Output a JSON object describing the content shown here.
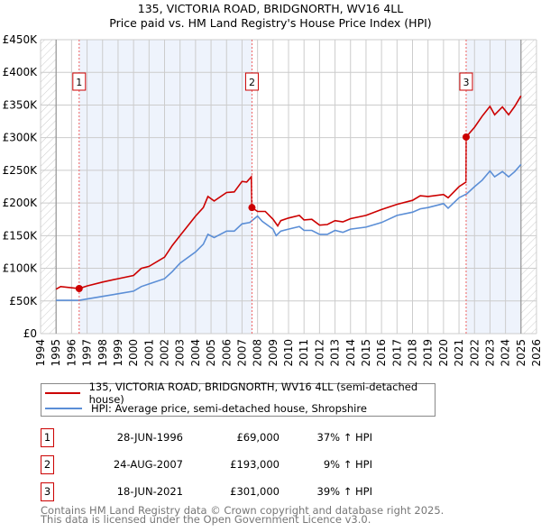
{
  "chart_data": {
    "type": "line",
    "title": "135, VICTORIA ROAD, BRIDGNORTH, WV16 4LL",
    "subtitle": "Price paid vs. HM Land Registry's House Price Index (HPI)",
    "xlim": [
      1994,
      2026
    ],
    "ylim": [
      0,
      450000
    ],
    "x_ticks": [
      "1994",
      "1995",
      "1996",
      "1997",
      "1998",
      "1999",
      "2000",
      "2001",
      "2002",
      "2003",
      "2004",
      "2005",
      "2006",
      "2007",
      "2008",
      "2009",
      "2010",
      "2011",
      "2012",
      "2013",
      "2014",
      "2015",
      "2016",
      "2017",
      "2018",
      "2019",
      "2020",
      "2021",
      "2022",
      "2023",
      "2024",
      "2025",
      "2026"
    ],
    "y_ticks": [
      {
        "value": 0,
        "label": "£0"
      },
      {
        "value": 50000,
        "label": "£50K"
      },
      {
        "value": 100000,
        "label": "£100K"
      },
      {
        "value": 150000,
        "label": "£150K"
      },
      {
        "value": 200000,
        "label": "£200K"
      },
      {
        "value": 250000,
        "label": "£250K"
      },
      {
        "value": 300000,
        "label": "£300K"
      },
      {
        "value": 350000,
        "label": "£350K"
      },
      {
        "value": 400000,
        "label": "£400K"
      },
      {
        "value": 450000,
        "label": "£450K"
      }
    ],
    "grid": true,
    "data_range": [
      1995,
      2025
    ],
    "series": [
      {
        "name": "135, VICTORIA ROAD, BRIDGNORTH, WV16 4LL (semi-detached house)",
        "color": "#cc0000",
        "x": [
          1995,
          1995.3,
          1996.49,
          1997,
          1998,
          1999,
          2000,
          2000.5,
          2001,
          2002,
          2002.5,
          2003,
          2004,
          2004.5,
          2004.8,
          2005.2,
          2006,
          2006.5,
          2007,
          2007.3,
          2007.6,
          2007.64,
          2008,
          2008.5,
          2009,
          2009.3,
          2009.5,
          2010,
          2010.7,
          2011,
          2011.5,
          2012,
          2012.5,
          2013,
          2013.5,
          2014,
          2015,
          2016,
          2017,
          2018,
          2018.5,
          2019,
          2020,
          2020.3,
          2021,
          2021.45,
          2021.46,
          2022,
          2022.5,
          2023,
          2023.3,
          2023.8,
          2024.2,
          2024.6,
          2025
        ],
        "y": [
          68000,
          72000,
          69000,
          73000,
          79000,
          84000,
          89000,
          100000,
          103000,
          117000,
          135000,
          150000,
          180000,
          193000,
          210000,
          203000,
          216000,
          217000,
          233000,
          232000,
          240000,
          193000,
          187000,
          187000,
          175000,
          165000,
          173000,
          177000,
          181000,
          174000,
          175000,
          166000,
          167000,
          173000,
          171000,
          176000,
          181000,
          190000,
          198000,
          204000,
          211000,
          210000,
          213000,
          208000,
          225000,
          232000,
          301000,
          316000,
          333000,
          348000,
          335000,
          347000,
          335000,
          348000,
          364000
        ]
      },
      {
        "name": "HPI: Average price, semi-detached house, Shropshire",
        "color": "#5b8ed6",
        "x": [
          1995,
          1996,
          1996.5,
          1997,
          1998,
          1999,
          2000,
          2000.5,
          2001,
          2002,
          2002.5,
          2003,
          2004,
          2004.5,
          2004.8,
          2005.2,
          2006,
          2006.5,
          2007,
          2007.5,
          2008,
          2008.3,
          2009,
          2009.2,
          2009.5,
          2010,
          2010.7,
          2011,
          2011.5,
          2012,
          2012.5,
          2013,
          2013.5,
          2014,
          2015,
          2016,
          2017,
          2018,
          2018.5,
          2019,
          2020,
          2020.3,
          2021,
          2021.5,
          2022,
          2022.5,
          2023,
          2023.3,
          2023.8,
          2024.2,
          2024.6,
          2025
        ],
        "y": [
          51000,
          51000,
          51000,
          53000,
          57000,
          61000,
          65000,
          72000,
          76000,
          84000,
          95000,
          108000,
          125000,
          137000,
          152000,
          147000,
          157000,
          157000,
          168000,
          170000,
          180000,
          172000,
          160000,
          150000,
          157000,
          160000,
          164000,
          158000,
          158000,
          152000,
          152000,
          158000,
          155000,
          160000,
          163000,
          170000,
          181000,
          186000,
          191000,
          193000,
          199000,
          192000,
          208000,
          214000,
          225000,
          235000,
          249000,
          240000,
          248000,
          240000,
          248000,
          259000
        ]
      }
    ],
    "sales": [
      {
        "num": "1",
        "x": 1996.49,
        "price": 69000,
        "date": "28-JUN-1996",
        "price_label": "£69,000",
        "hpi": "37% ↑ HPI"
      },
      {
        "num": "2",
        "x": 2007.64,
        "price": 193000,
        "date": "24-AUG-2007",
        "price_label": "£193,000",
        "hpi": "9% ↑ HPI"
      },
      {
        "num": "3",
        "x": 2021.46,
        "price": 301000,
        "date": "18-JUN-2021",
        "price_label": "£301,000",
        "hpi": "39% ↑ HPI"
      }
    ],
    "legend_placement": "bottom"
  },
  "footer": {
    "line1": "Contains HM Land Registry data © Crown copyright and database right 2025.",
    "line2": "This data is licensed under the Open Government Licence v3.0."
  }
}
